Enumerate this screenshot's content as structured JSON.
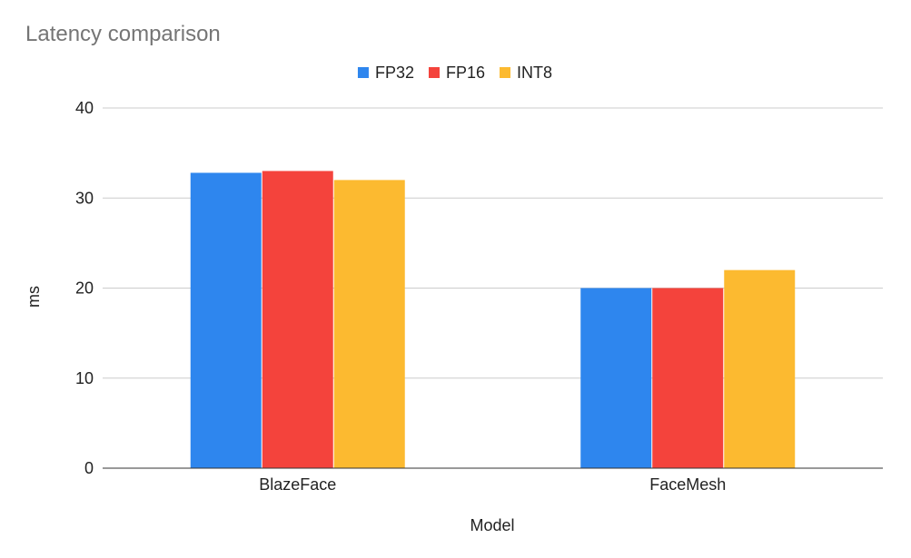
{
  "chart_data": {
    "type": "bar",
    "title": "Latency comparison",
    "xlabel": "Model",
    "ylabel": "ms",
    "categories": [
      "BlazeFace",
      "FaceMesh"
    ],
    "series": [
      {
        "name": "FP32",
        "color": "#2e86ee",
        "values": [
          32.8,
          20
        ]
      },
      {
        "name": "FP16",
        "color": "#f4433c",
        "values": [
          33,
          20
        ]
      },
      {
        "name": "INT8",
        "color": "#fcba30",
        "values": [
          32,
          22
        ]
      }
    ],
    "ylim": [
      0,
      40
    ],
    "yticks": [
      0,
      10,
      20,
      30,
      40
    ],
    "grid": true,
    "legend": "top-center"
  }
}
